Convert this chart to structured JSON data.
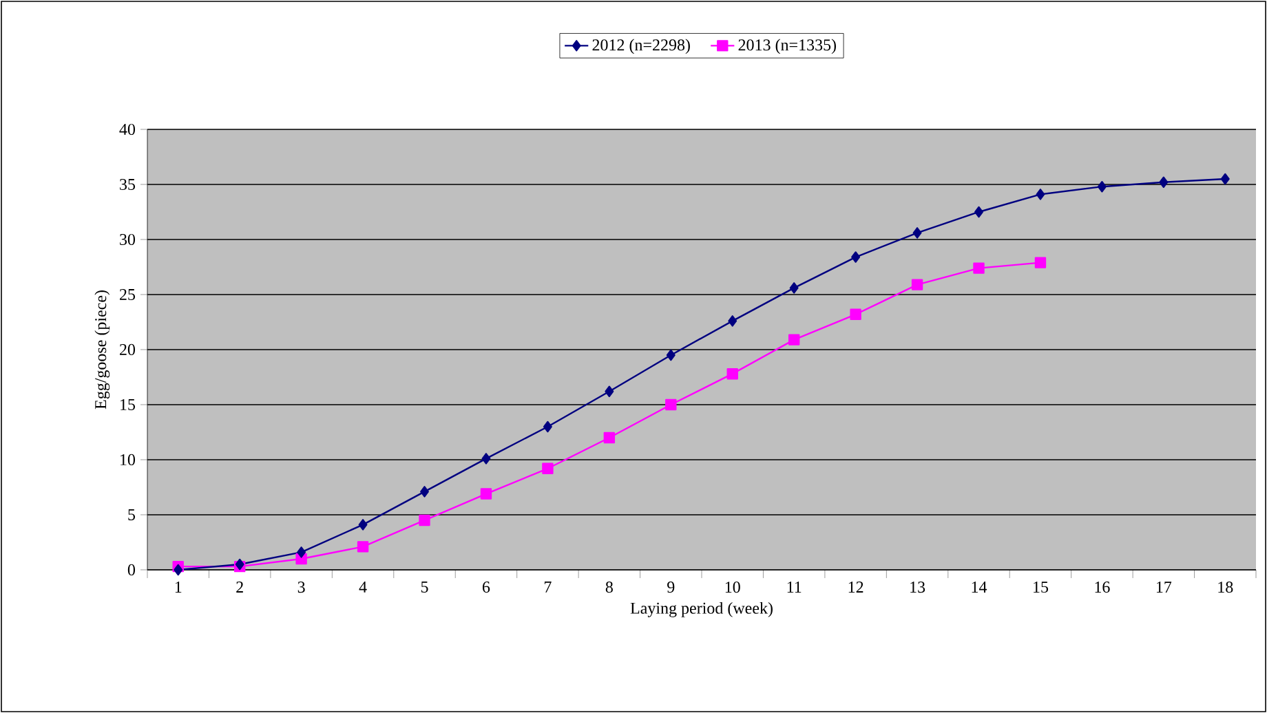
{
  "chart_data": {
    "type": "line",
    "xlabel": "Laying period (week)",
    "ylabel": "Egg/goose (piece)",
    "categories": [
      "1",
      "2",
      "3",
      "4",
      "5",
      "6",
      "7",
      "8",
      "9",
      "10",
      "11",
      "12",
      "13",
      "14",
      "15",
      "16",
      "17",
      "18"
    ],
    "series": [
      {
        "name": "2012 (n=2298)",
        "color": "#000080",
        "marker": "diamond",
        "values": [
          0,
          0.5,
          1.6,
          4.1,
          7.1,
          10.1,
          13,
          16.2,
          19.5,
          22.6,
          25.6,
          28.4,
          30.6,
          32.5,
          34.1,
          34.8,
          35.2,
          35.5
        ]
      },
      {
        "name": "2013 (n=1335)",
        "color": "#ff00ff",
        "marker": "square",
        "values": [
          0.3,
          0.3,
          1,
          2.1,
          4.5,
          6.9,
          9.2,
          12,
          15,
          17.8,
          20.9,
          23.2,
          25.9,
          27.4,
          27.9,
          null,
          null,
          null
        ]
      }
    ],
    "ylim": [
      0,
      40
    ],
    "yticks": [
      0,
      5,
      10,
      15,
      20,
      25,
      30,
      35,
      40
    ],
    "grid": "y",
    "legend": "top"
  }
}
